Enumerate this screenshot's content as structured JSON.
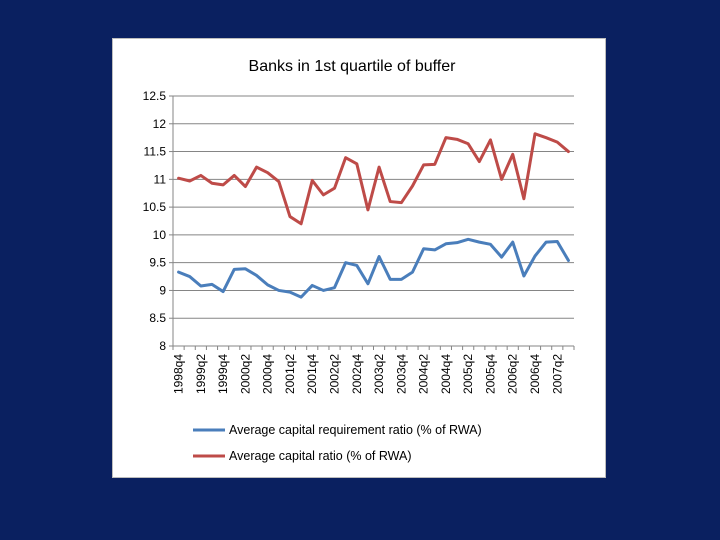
{
  "background_color": "#0a2060",
  "chart_data": {
    "type": "line",
    "title": "Banks in 1st quartile of buffer",
    "xlabel": "",
    "ylabel": "",
    "ylim": [
      8,
      12.5
    ],
    "yticks": [
      "8",
      "8.5",
      "9",
      "9.5",
      "10",
      "10.5",
      "11",
      "11.5",
      "12",
      "12.5"
    ],
    "grid": true,
    "legend_position": "bottom",
    "x": [
      "1998q4",
      "1999q1",
      "1999q2",
      "1999q3",
      "1999q4",
      "2000q1",
      "2000q2",
      "2000q3",
      "2000q4",
      "2001q1",
      "2001q2",
      "2001q3",
      "2001q4",
      "2002q1",
      "2002q2",
      "2002q3",
      "2002q4",
      "2003q1",
      "2003q2",
      "2003q3",
      "2003q4",
      "2004q1",
      "2004q2",
      "2004q3",
      "2004q4",
      "2005q1",
      "2005q2",
      "2005q3",
      "2005q4",
      "2006q1",
      "2006q2",
      "2006q3",
      "2006q4",
      "2007q1",
      "2007q2",
      "2007q3"
    ],
    "x_tick_labels": [
      "1998q4",
      "1999q2",
      "1999q4",
      "2000q2",
      "2000q4",
      "2001q2",
      "2001q4",
      "2002q2",
      "2002q4",
      "2003q2",
      "2003q4",
      "2004q2",
      "2004q4",
      "2005q2",
      "2005q4",
      "2006q2",
      "2006q4",
      "2007q2"
    ],
    "series": [
      {
        "name": "Average capital requirement ratio (% of RWA)",
        "color": "#4a7ebb",
        "values": [
          9.33,
          9.25,
          9.08,
          9.11,
          8.98,
          9.38,
          9.39,
          9.27,
          9.1,
          9.0,
          8.97,
          8.88,
          9.09,
          9.0,
          9.05,
          9.5,
          9.45,
          9.12,
          9.61,
          9.2,
          9.2,
          9.33,
          9.75,
          9.73,
          9.84,
          9.86,
          9.92,
          9.87,
          9.83,
          9.6,
          9.87,
          9.26,
          9.62,
          9.87,
          9.88,
          9.54
        ]
      },
      {
        "name": "Average capital ratio (% of RWA)",
        "color": "#be4b48",
        "values": [
          11.02,
          10.97,
          11.07,
          10.93,
          10.9,
          11.07,
          10.87,
          11.22,
          11.12,
          10.96,
          10.33,
          10.2,
          10.98,
          10.72,
          10.84,
          11.39,
          11.28,
          10.45,
          11.22,
          10.6,
          10.58,
          10.88,
          11.26,
          11.27,
          11.75,
          11.72,
          11.64,
          11.32,
          11.71,
          11.0,
          11.45,
          10.65,
          11.82,
          11.75,
          11.67,
          11.5
        ]
      }
    ]
  }
}
